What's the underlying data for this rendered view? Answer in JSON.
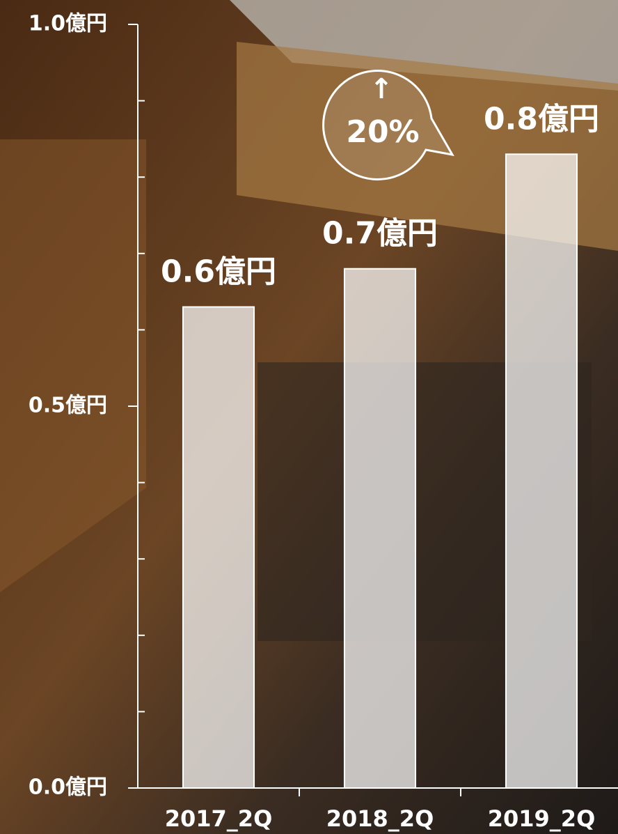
{
  "chart_data": {
    "type": "bar",
    "categories": [
      "2017_2Q",
      "2018_2Q",
      "2019_2Q"
    ],
    "values": [
      0.63,
      0.68,
      0.83
    ],
    "value_labels": [
      "0.6億円",
      "0.7億円",
      "0.8億円"
    ],
    "color": "rgba(255,255,255,0.72)",
    "ylim": [
      0,
      1
    ],
    "yticks": [
      {
        "value": 0,
        "label": "0.0億円"
      },
      {
        "value": 0.5,
        "label": "0.5億円"
      },
      {
        "value": 1,
        "label": "1.0億円"
      }
    ],
    "minor_yticks": [
      0.1,
      0.2,
      0.3,
      0.4,
      0.6,
      0.7,
      0.8,
      0.9
    ],
    "annotation": {
      "arrow": "↑",
      "text": "20%"
    }
  }
}
